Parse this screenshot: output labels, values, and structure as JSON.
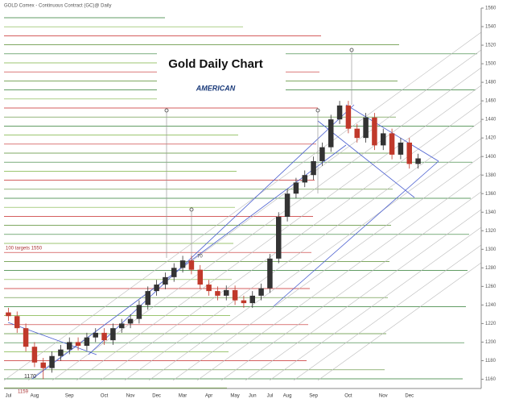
{
  "chart_data": {
    "type": "candlestick",
    "header": "GOLD Comex - Continuous Contract (GC)@ Daily",
    "title": "Gold Daily Chart",
    "logo": "AMERICAN",
    "annotations": [
      "100 targets 1550",
      "70",
      "1170",
      "1159"
    ],
    "categories": [
      "Jul",
      null,
      null,
      "Aug",
      null,
      null,
      null,
      "Sep",
      null,
      null,
      null,
      "Oct",
      null,
      null,
      "Nov",
      null,
      null,
      "Dec",
      null,
      null,
      "Mar",
      null,
      null,
      "Apr",
      null,
      null,
      "May",
      null,
      "Jun",
      null,
      "Jul",
      null,
      "Aug",
      null,
      null,
      "Sep",
      null,
      null,
      null,
      "Oct",
      null,
      null,
      null,
      "Nov",
      null,
      null,
      "Dec",
      null
    ],
    "open": [
      1232,
      1228,
      1215,
      1195,
      1178,
      1172,
      1185,
      1192,
      1200,
      1196,
      1205,
      1210,
      1202,
      1215,
      1220,
      1225,
      1240,
      1255,
      1262,
      1270,
      1280,
      1288,
      1278,
      1262,
      1255,
      1250,
      1256,
      1245,
      1242,
      1250,
      1258,
      1290,
      1335,
      1360,
      1372,
      1380,
      1395,
      1410,
      1440,
      1455,
      1430,
      1420,
      1442,
      1412,
      1425,
      1402,
      1415,
      1392
    ],
    "high": [
      1237,
      1233,
      1220,
      1200,
      1183,
      1190,
      1197,
      1205,
      1205,
      1210,
      1215,
      1215,
      1220,
      1225,
      1230,
      1245,
      1260,
      1267,
      1275,
      1285,
      1293,
      1293,
      1283,
      1267,
      1260,
      1261,
      1261,
      1250,
      1255,
      1263,
      1295,
      1340,
      1365,
      1377,
      1385,
      1400,
      1415,
      1445,
      1460,
      1460,
      1435,
      1447,
      1447,
      1430,
      1430,
      1420,
      1420,
      1403
    ],
    "low": [
      1223,
      1210,
      1190,
      1173,
      1160,
      1167,
      1180,
      1187,
      1191,
      1191,
      1200,
      1197,
      1197,
      1210,
      1215,
      1220,
      1235,
      1250,
      1257,
      1265,
      1275,
      1273,
      1257,
      1250,
      1245,
      1245,
      1240,
      1237,
      1237,
      1245,
      1253,
      1285,
      1330,
      1355,
      1367,
      1375,
      1390,
      1405,
      1435,
      1425,
      1415,
      1415,
      1407,
      1407,
      1397,
      1397,
      1387,
      1387
    ],
    "close": [
      1228,
      1215,
      1195,
      1178,
      1172,
      1185,
      1192,
      1200,
      1196,
      1205,
      1210,
      1202,
      1215,
      1220,
      1225,
      1240,
      1255,
      1262,
      1270,
      1280,
      1288,
      1278,
      1262,
      1255,
      1250,
      1256,
      1245,
      1242,
      1250,
      1258,
      1290,
      1335,
      1360,
      1372,
      1380,
      1395,
      1410,
      1440,
      1455,
      1430,
      1420,
      1442,
      1412,
      1425,
      1402,
      1415,
      1392,
      1398
    ],
    "up_color": "#333333",
    "down_color": "#c0392b",
    "ylim": [
      1150,
      1560
    ],
    "yticks": [
      1160,
      1180,
      1200,
      1220,
      1240,
      1260,
      1280,
      1300,
      1320,
      1340,
      1360,
      1380,
      1400,
      1420,
      1440,
      1460,
      1480,
      1500,
      1520,
      1540,
      1560
    ]
  }
}
